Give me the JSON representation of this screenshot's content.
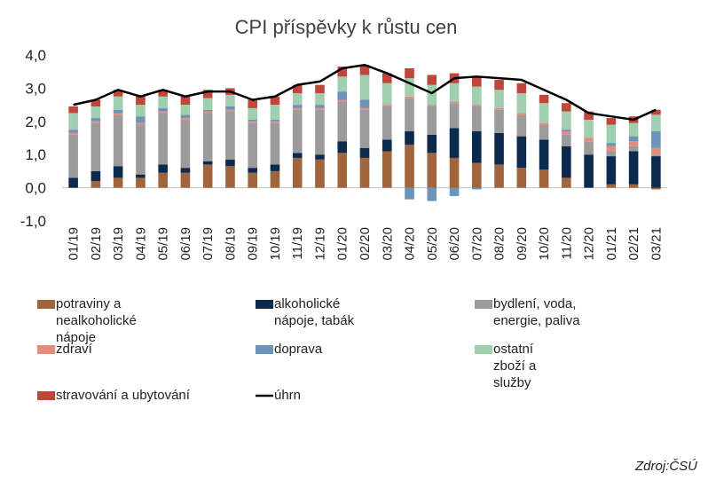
{
  "chart_data": {
    "type": "bar",
    "stacked": true,
    "title": "CPI příspěvky k růstu cen",
    "source": "Zdroj:ČSÚ",
    "ylim": [
      -1.0,
      4.0
    ],
    "yticks": [
      "-1,0",
      "0,0",
      "1,0",
      "2,0",
      "3,0",
      "4,0"
    ],
    "ytick_values": [
      -1,
      0,
      1,
      2,
      3,
      4
    ],
    "categories": [
      "01/19",
      "02/19",
      "03/19",
      "04/19",
      "05/19",
      "06/19",
      "07/19",
      "08/19",
      "09/19",
      "10/19",
      "11/19",
      "12/19",
      "01/20",
      "02/20",
      "03/20",
      "04/20",
      "05/20",
      "06/20",
      "07/20",
      "08/20",
      "09/20",
      "10/20",
      "11/20",
      "12/20",
      "01/21",
      "02/21",
      "03/21"
    ],
    "legend": [
      {
        "lines": [
          "potraviny a",
          "nealkoholické",
          "nápoje"
        ],
        "color": "#A0653A",
        "type": "bar"
      },
      {
        "lines": [
          "alkoholické",
          "nápoje, tabák"
        ],
        "color": "#0B2A4E",
        "type": "bar"
      },
      {
        "lines": [
          "bydlení, voda,",
          "energie, paliva"
        ],
        "color": "#9B9B9B",
        "type": "bar"
      },
      {
        "lines": [
          "zdraví"
        ],
        "color": "#E38D7A",
        "type": "bar"
      },
      {
        "lines": [
          "doprava"
        ],
        "color": "#6C93B8",
        "type": "bar"
      },
      {
        "lines": [
          "ostatní",
          "zboží a",
          "služby"
        ],
        "color": "#9FCFAE",
        "type": "bar"
      },
      {
        "lines": [
          "stravování a ubytování"
        ],
        "color": "#C0453A",
        "type": "bar"
      },
      {
        "lines": [
          "úhrn"
        ],
        "color": "#000000",
        "type": "line"
      }
    ],
    "series": [
      {
        "name": "potraviny a nealkoholické nápoje",
        "color": "#A0653A",
        "values": [
          0.0,
          0.2,
          0.3,
          0.3,
          0.45,
          0.45,
          0.7,
          0.65,
          0.45,
          0.5,
          0.9,
          0.85,
          1.05,
          0.9,
          1.1,
          1.3,
          1.05,
          0.9,
          0.75,
          0.7,
          0.6,
          0.55,
          0.3,
          0.0,
          0.1,
          0.1,
          -0.05
        ]
      },
      {
        "name": "alkoholické nápoje, tabák",
        "color": "#0B2A4E",
        "values": [
          0.3,
          0.3,
          0.35,
          0.1,
          0.25,
          0.15,
          0.1,
          0.2,
          0.15,
          0.2,
          0.15,
          0.15,
          0.35,
          0.3,
          0.35,
          0.4,
          0.55,
          0.9,
          0.95,
          0.95,
          0.95,
          0.9,
          0.95,
          1.0,
          0.85,
          1.0,
          0.95
        ]
      },
      {
        "name": "bydlení, voda, energie, paliva",
        "color": "#9B9B9B",
        "values": [
          1.3,
          1.45,
          1.55,
          1.5,
          1.55,
          1.45,
          1.45,
          1.45,
          1.35,
          1.25,
          1.3,
          1.35,
          1.2,
          1.15,
          1.0,
          1.0,
          0.85,
          0.75,
          0.75,
          0.7,
          0.65,
          0.45,
          0.35,
          0.4,
          0.15,
          0.15,
          0.05
        ]
      },
      {
        "name": "zdraví",
        "color": "#E38D7A",
        "values": [
          0.05,
          0.05,
          0.05,
          0.05,
          0.05,
          0.05,
          0.05,
          0.05,
          0.05,
          0.05,
          0.05,
          0.05,
          0.05,
          0.05,
          0.05,
          0.05,
          0.05,
          0.05,
          0.05,
          0.05,
          0.05,
          0.05,
          0.1,
          0.1,
          0.15,
          0.15,
          0.2
        ]
      },
      {
        "name": "doprava",
        "color": "#6C93B8",
        "values": [
          0.1,
          0.1,
          0.1,
          0.2,
          0.1,
          0.1,
          0.05,
          0.1,
          0.05,
          0.05,
          0.1,
          0.1,
          0.25,
          0.25,
          0.0,
          -0.35,
          -0.4,
          -0.25,
          -0.05,
          0.0,
          0.0,
          0.0,
          0.05,
          0.0,
          0.1,
          0.15,
          0.5
        ]
      },
      {
        "name": "ostatní zboží a služby",
        "color": "#9FCFAE",
        "values": [
          0.5,
          0.35,
          0.4,
          0.35,
          0.35,
          0.3,
          0.35,
          0.35,
          0.35,
          0.45,
          0.35,
          0.35,
          0.45,
          0.75,
          0.65,
          0.55,
          0.6,
          0.55,
          0.55,
          0.55,
          0.6,
          0.6,
          0.55,
          0.55,
          0.55,
          0.4,
          0.5
        ]
      },
      {
        "name": "stravování a ubytování",
        "color": "#C0453A",
        "values": [
          0.2,
          0.2,
          0.2,
          0.25,
          0.2,
          0.25,
          0.25,
          0.2,
          0.25,
          0.25,
          0.25,
          0.25,
          0.3,
          0.3,
          0.3,
          0.3,
          0.3,
          0.3,
          0.3,
          0.3,
          0.3,
          0.25,
          0.25,
          0.25,
          0.2,
          0.2,
          0.15
        ]
      }
    ],
    "line": {
      "name": "úhrn",
      "color": "#000000",
      "values": [
        2.5,
        2.65,
        2.95,
        2.75,
        2.95,
        2.75,
        2.9,
        2.9,
        2.65,
        2.75,
        3.1,
        3.2,
        3.6,
        3.7,
        3.45,
        3.15,
        2.85,
        3.3,
        3.35,
        3.3,
        3.25,
        2.95,
        2.65,
        2.25,
        2.15,
        2.05,
        2.35
      ]
    }
  }
}
